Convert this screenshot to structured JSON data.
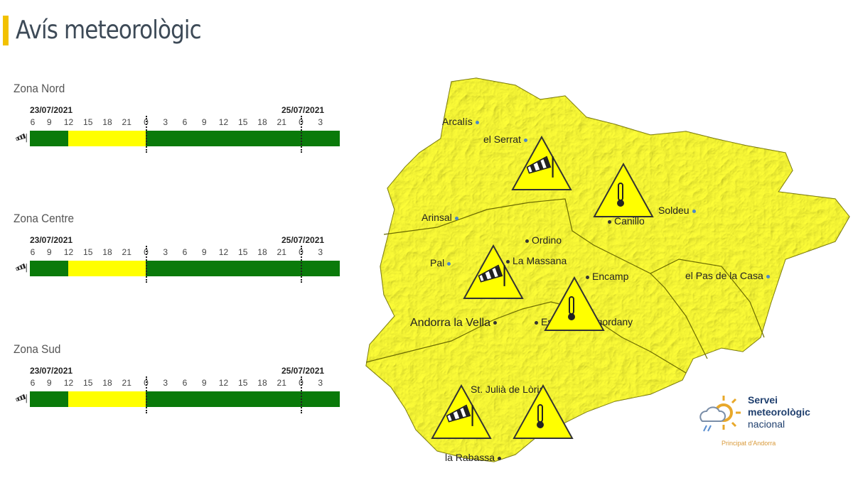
{
  "header": {
    "title": "Avís meteorològic",
    "accent": "#f2c100"
  },
  "timeline": {
    "date_start": "23/07/2021",
    "date_end": "25/07/2021",
    "ticks": [
      "6",
      "9",
      "12",
      "15",
      "18",
      "21",
      "0",
      "3",
      "6",
      "9",
      "12",
      "15",
      "18",
      "21",
      "0",
      "3"
    ],
    "colors": {
      "green": "#0a7a0a",
      "yellow": "#ffff00"
    }
  },
  "zones": [
    {
      "name": "Zona Nord",
      "icon": "windsock-icon",
      "segments": [
        {
          "from": "23/07 06:00",
          "to": "23/07 12:00",
          "level": "green"
        },
        {
          "from": "23/07 12:00",
          "to": "24/07 00:00",
          "level": "yellow"
        },
        {
          "from": "24/07 00:00",
          "to": "25/07 06:00",
          "level": "green"
        }
      ]
    },
    {
      "name": "Zona Centre",
      "icon": "windsock-icon",
      "segments": [
        {
          "from": "23/07 06:00",
          "to": "23/07 12:00",
          "level": "green"
        },
        {
          "from": "23/07 12:00",
          "to": "24/07 00:00",
          "level": "yellow"
        },
        {
          "from": "24/07 00:00",
          "to": "25/07 06:00",
          "level": "green"
        }
      ]
    },
    {
      "name": "Zona Sud",
      "icon": "windsock-icon",
      "segments": [
        {
          "from": "23/07 06:00",
          "to": "23/07 12:00",
          "level": "green"
        },
        {
          "from": "23/07 12:00",
          "to": "24/07 00:00",
          "level": "yellow"
        },
        {
          "from": "24/07 00:00",
          "to": "25/07 06:00",
          "level": "green"
        }
      ]
    }
  ],
  "map": {
    "fill": "#ffff33",
    "places": [
      "Arcalís",
      "el Serrat",
      "Arinsal",
      "Canillo",
      "Soldeu",
      "Ordino",
      "Pal",
      "La Massana",
      "Encamp",
      "el Pas de la Casa",
      "Andorra la Vella",
      "Escaldes-Engordany",
      "St. Julià de Lòria",
      "la Rabassa"
    ],
    "warnings": [
      {
        "zone": "Zona Nord",
        "type": "wind"
      },
      {
        "zone": "Zona Nord",
        "type": "temperature"
      },
      {
        "zone": "Zona Centre",
        "type": "wind"
      },
      {
        "zone": "Zona Centre",
        "type": "temperature"
      },
      {
        "zone": "Zona Sud",
        "type": "wind"
      },
      {
        "zone": "Zona Sud",
        "type": "temperature"
      }
    ]
  },
  "logo": {
    "line1": "Servei",
    "line2": "meteorològic",
    "line3": "nacional",
    "subtitle": "Principat d'Andorra"
  }
}
